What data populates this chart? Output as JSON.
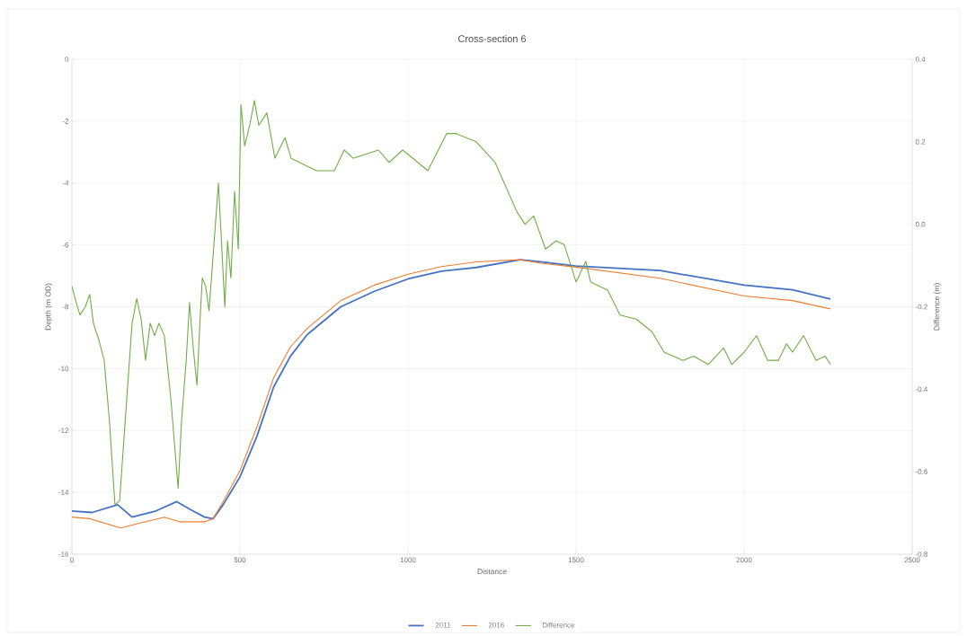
{
  "chart_data": {
    "type": "line",
    "title": "Cross-section 6",
    "xlabel": "Distance",
    "ylabel": "Depth (m OD)",
    "y2label": "Difference (m)",
    "xlim": [
      0,
      2500
    ],
    "xticks": [
      0,
      500,
      1000,
      1500,
      2000,
      2500
    ],
    "ylim": [
      -16,
      0
    ],
    "yticks": [
      -16,
      -14,
      -12,
      -10,
      -8,
      -6,
      -4,
      -2,
      0
    ],
    "y2lim": [
      -0.8,
      0.4
    ],
    "y2ticks": [
      -0.8,
      -0.6,
      -0.4,
      -0.2,
      {
        "value": 0,
        "label": "0.0"
      },
      0.2,
      0.4
    ],
    "grid": true,
    "legend": "bottom",
    "marker": "none",
    "line_style": "solid",
    "series": [
      {
        "name": "2011",
        "color": "#4472c4",
        "x": [
          0,
          60,
          136,
          179,
          250,
          312,
          360,
          395,
          420,
          450,
          500,
          550,
          600,
          650,
          700,
          800,
          900,
          1000,
          1100,
          1203,
          1334,
          1400,
          1500,
          1750,
          2000,
          2144,
          2257
        ],
        "values": [
          -14.6,
          -14.65,
          -14.4,
          -14.8,
          -14.6,
          -14.3,
          -14.6,
          -14.8,
          -14.85,
          -14.4,
          -13.5,
          -12.2,
          -10.6,
          -9.6,
          -8.9,
          -8.0,
          -7.5,
          -7.1,
          -6.85,
          -6.73,
          -6.48,
          -6.55,
          -6.68,
          -6.83,
          -7.3,
          -7.45,
          -7.75
        ]
      },
      {
        "name": "2016",
        "color": "#ed7d31",
        "x": [
          0,
          53,
          145,
          200,
          275,
          320,
          395,
          420,
          450,
          500,
          550,
          600,
          650,
          700,
          800,
          900,
          1000,
          1100,
          1203,
          1334,
          1400,
          1500,
          1750,
          2000,
          2144,
          2257
        ],
        "values": [
          -14.8,
          -14.85,
          -15.15,
          -15.0,
          -14.8,
          -14.95,
          -14.95,
          -14.85,
          -14.3,
          -13.3,
          -11.9,
          -10.3,
          -9.3,
          -8.7,
          -7.8,
          -7.3,
          -6.95,
          -6.7,
          -6.55,
          -6.48,
          -6.6,
          -6.72,
          -7.08,
          -7.65,
          -7.8,
          -8.07
        ]
      },
      {
        "name": "Difference",
        "color": "#70ad47",
        "axis": "y2",
        "x": [
          0,
          13,
          24,
          40,
          53,
          64,
          80,
          96,
          112,
          128,
          142,
          160,
          179,
          193,
          206,
          219,
          233,
          246,
          259,
          275,
          294,
          307,
          316,
          326,
          340,
          350,
          361,
          372,
          382,
          388,
          398,
          408,
          436,
          455,
          463,
          473,
          484,
          495,
          503,
          514,
          529,
          543,
          556,
          580,
          604,
          634,
          652,
          727,
          781,
          810,
          837,
          912,
          944,
          984,
          1059,
          1115,
          1142,
          1203,
          1259,
          1324,
          1348,
          1374,
          1409,
          1441,
          1465,
          1500,
          1529,
          1543,
          1594,
          1631,
          1679,
          1725,
          1762,
          1818,
          1850,
          1893,
          1939,
          1963,
          2000,
          2037,
          2070,
          2102,
          2126,
          2144,
          2177,
          2214,
          2241,
          2257
        ],
        "values": [
          -0.15,
          -0.19,
          -0.22,
          -0.2,
          -0.17,
          -0.24,
          -0.28,
          -0.33,
          -0.48,
          -0.68,
          -0.67,
          -0.46,
          -0.24,
          -0.18,
          -0.23,
          -0.33,
          -0.24,
          -0.27,
          -0.24,
          -0.27,
          -0.42,
          -0.55,
          -0.64,
          -0.48,
          -0.33,
          -0.19,
          -0.3,
          -0.39,
          -0.22,
          -0.13,
          -0.15,
          -0.21,
          0.1,
          -0.2,
          -0.04,
          -0.13,
          0.08,
          -0.06,
          0.29,
          0.19,
          0.24,
          0.3,
          0.24,
          0.27,
          0.16,
          0.21,
          0.16,
          0.13,
          0.13,
          0.18,
          0.16,
          0.18,
          0.15,
          0.18,
          0.13,
          0.22,
          0.22,
          0.2,
          0.15,
          0.03,
          0.0,
          0.02,
          -0.06,
          -0.04,
          -0.05,
          -0.14,
          -0.09,
          -0.14,
          -0.16,
          -0.22,
          -0.23,
          -0.26,
          -0.31,
          -0.33,
          -0.32,
          -0.34,
          -0.3,
          -0.34,
          -0.31,
          -0.27,
          -0.33,
          -0.33,
          -0.29,
          -0.31,
          -0.27,
          -0.33,
          -0.32,
          -0.34
        ]
      }
    ]
  }
}
